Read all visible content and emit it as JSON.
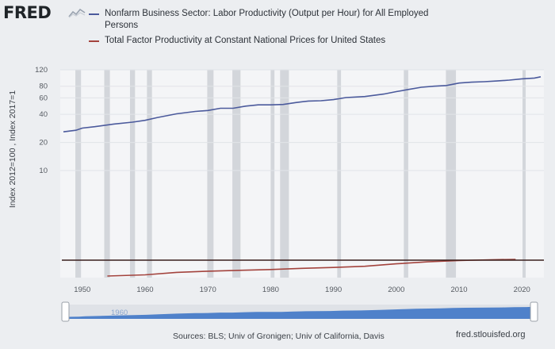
{
  "logo": {
    "text": "FRED",
    "icon": "chart-line-icon"
  },
  "legend": [
    {
      "label": "Nonfarm Business Sector: Labor Productivity (Output per Hour) for All Employed Persons",
      "color": "#4b5a9c"
    },
    {
      "label": "Total Factor Productivity at Constant National Prices for United States",
      "color": "#a3433d"
    }
  ],
  "footer": {
    "sources": "Sources: BLS; Univ of Gronigen; Univ of California, Davis",
    "link": "fred.stlouisfed.org"
  },
  "slider": {
    "handle_left": "||",
    "handle_right": "||",
    "label": "1960"
  },
  "chart_data": {
    "type": "line",
    "title": "",
    "ylabel": "Index 2012=100 , Index 2017=1",
    "xlabel": "",
    "x_ticks": [
      1950,
      1960,
      1970,
      1980,
      1990,
      2000,
      2010,
      2020
    ],
    "y_ticks": [
      10,
      20,
      40,
      60,
      80,
      120
    ],
    "y_scale": "log",
    "xlim": [
      1947,
      2023
    ],
    "recessions": [
      [
        1948.9,
        1949.8
      ],
      [
        1953.5,
        1954.4
      ],
      [
        1957.6,
        1958.4
      ],
      [
        1960.3,
        1961.1
      ],
      [
        1969.9,
        1970.9
      ],
      [
        1973.9,
        1975.2
      ],
      [
        1980.0,
        1980.6
      ],
      [
        1981.5,
        1982.9
      ],
      [
        1990.6,
        1991.2
      ],
      [
        2001.2,
        2001.9
      ],
      [
        2007.9,
        2009.5
      ],
      [
        2020.1,
        2020.4
      ]
    ],
    "series": [
      {
        "name": "Nonfarm Business Sector: Labor Productivity (Output per Hour) for All Employed Persons",
        "color": "#4b5a9c",
        "points": [
          [
            1947,
            26
          ],
          [
            1948,
            26.5
          ],
          [
            1949,
            27
          ],
          [
            1950,
            28.5
          ],
          [
            1952,
            29.5
          ],
          [
            1955,
            31.5
          ],
          [
            1958,
            33
          ],
          [
            1960,
            34.5
          ],
          [
            1962,
            37
          ],
          [
            1965,
            40.5
          ],
          [
            1968,
            43
          ],
          [
            1970,
            44
          ],
          [
            1972,
            46.5
          ],
          [
            1974,
            46.5
          ],
          [
            1976,
            49
          ],
          [
            1978,
            50.5
          ],
          [
            1980,
            50.5
          ],
          [
            1982,
            51
          ],
          [
            1984,
            53.5
          ],
          [
            1986,
            55.5
          ],
          [
            1988,
            56
          ],
          [
            1990,
            57.5
          ],
          [
            1992,
            60.5
          ],
          [
            1995,
            62
          ],
          [
            1998,
            66
          ],
          [
            2000,
            70
          ],
          [
            2002,
            74
          ],
          [
            2004,
            78
          ],
          [
            2006,
            80
          ],
          [
            2008,
            81.5
          ],
          [
            2010,
            86.5
          ],
          [
            2012,
            88.5
          ],
          [
            2014,
            89.5
          ],
          [
            2016,
            91
          ],
          [
            2018,
            93
          ],
          [
            2020,
            96
          ],
          [
            2022,
            98
          ],
          [
            2023,
            101
          ]
        ]
      },
      {
        "name": "Total Factor Productivity at Constant National Prices for United States",
        "color": "#a3433d",
        "points": [
          [
            1954,
            0.6
          ],
          [
            1960,
            0.63
          ],
          [
            1965,
            0.69
          ],
          [
            1970,
            0.72
          ],
          [
            1975,
            0.74
          ],
          [
            1980,
            0.76
          ],
          [
            1985,
            0.79
          ],
          [
            1990,
            0.81
          ],
          [
            1995,
            0.84
          ],
          [
            2000,
            0.9
          ],
          [
            2005,
            0.95
          ],
          [
            2010,
            0.98
          ],
          [
            2015,
            1.0
          ],
          [
            2019,
            1.01
          ]
        ]
      }
    ],
    "grid": true,
    "legend": "top"
  }
}
